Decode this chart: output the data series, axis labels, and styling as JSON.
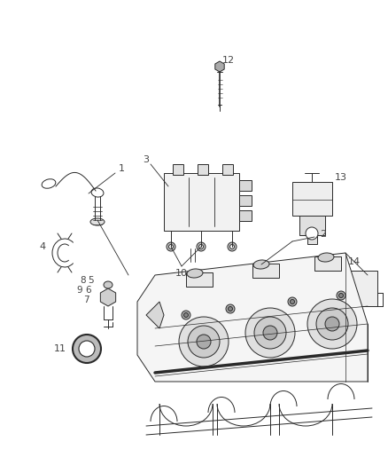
{
  "bg_color": "#ffffff",
  "line_color": "#2a2a2a",
  "label_color": "#444444",
  "fig_width": 4.38,
  "fig_height": 5.33,
  "dpi": 100
}
